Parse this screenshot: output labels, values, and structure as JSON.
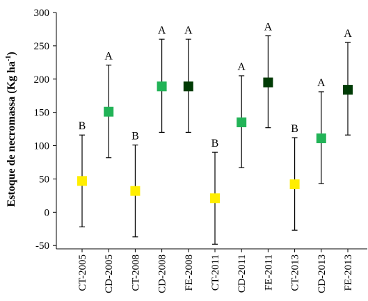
{
  "chart_data": {
    "type": "scatter",
    "ylabel": "Estoque de necromassa (Kg ha",
    "ylabel_sup": "-1",
    "ylabel_close": ")",
    "ylim": [
      -55,
      300
    ],
    "yticks": [
      -50,
      0,
      50,
      100,
      150,
      200,
      250,
      300
    ],
    "grid": false,
    "categories": [
      "CT-2005",
      "CD-2005",
      "CT-2008",
      "CD-2008",
      "FE-2008",
      "CT-2011",
      "CD-2011",
      "FE-2011",
      "CT-2013",
      "CD-2013",
      "FE-2013"
    ],
    "values": [
      47,
      151,
      32,
      189,
      189,
      21,
      135,
      195,
      42,
      111,
      184
    ],
    "error_low": [
      -22,
      82,
      -37,
      120,
      120,
      -48,
      67,
      127,
      -27,
      43,
      116
    ],
    "error_high": [
      116,
      221,
      101,
      260,
      260,
      90,
      205,
      265,
      112,
      181,
      255
    ],
    "letters": [
      "B",
      "A",
      "B",
      "A",
      "A",
      "B",
      "A",
      "A",
      "B",
      "A",
      "A"
    ],
    "colors": [
      "#ffee00",
      "#22b357",
      "#ffee00",
      "#22b357",
      "#003b05",
      "#ffee00",
      "#22b357",
      "#003b05",
      "#ffee00",
      "#22b357",
      "#003b05"
    ]
  }
}
